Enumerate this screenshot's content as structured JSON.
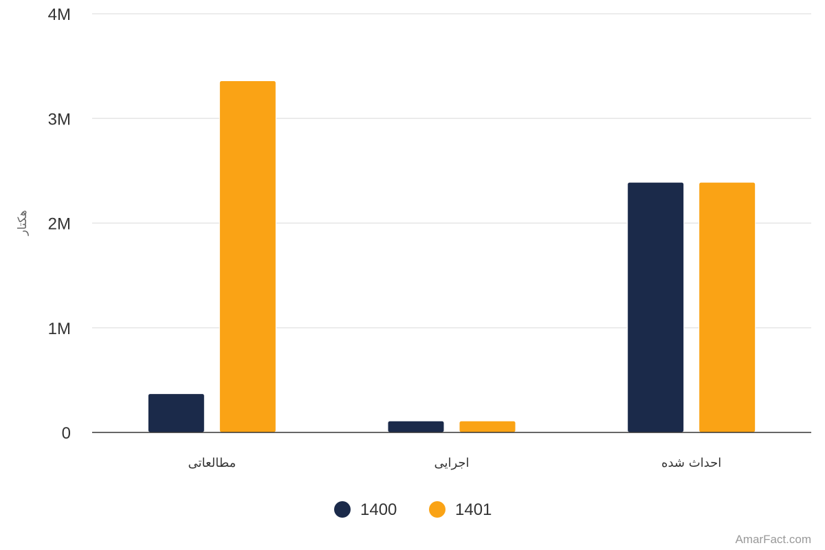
{
  "chart_data": {
    "type": "bar",
    "categories": [
      "مطالعاتی",
      "اجرایی",
      "احداث شده"
    ],
    "series": [
      {
        "name": "1400",
        "color": "#1b2a4a",
        "values": [
          370000,
          110000,
          2390000
        ]
      },
      {
        "name": "1401",
        "color": "#faa315",
        "values": [
          3360000,
          110000,
          2390000
        ]
      }
    ],
    "ylabel": "هکتار",
    "ylim": [
      0,
      4000000
    ],
    "yticks": [
      0,
      1000000,
      2000000,
      3000000,
      4000000
    ],
    "ytick_labels": [
      "0",
      "1M",
      "2M",
      "3M",
      "4M"
    ],
    "grid": true,
    "legend": "bottom-center"
  },
  "watermark": "AmarFact.com"
}
